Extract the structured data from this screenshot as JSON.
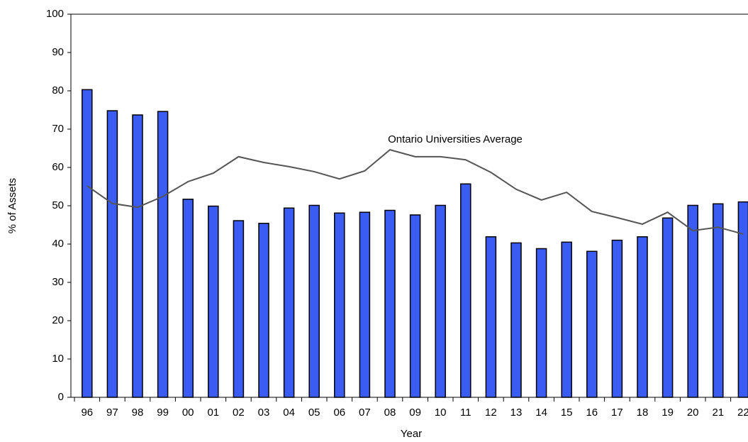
{
  "chart_data": {
    "type": "bar",
    "ylabel": "% of Assets",
    "xlabel": "Year",
    "categories": [
      "96",
      "97",
      "98",
      "99",
      "00",
      "01",
      "02",
      "03",
      "04",
      "05",
      "06",
      "07",
      "08",
      "09",
      "10",
      "11",
      "12",
      "13",
      "14",
      "15",
      "16",
      "17",
      "18",
      "19",
      "20",
      "21",
      "22"
    ],
    "series": [
      {
        "type": "bar",
        "color": "#3a5cf2",
        "values": [
          80.3,
          74.8,
          73.7,
          74.6,
          51.7,
          49.9,
          46.1,
          45.4,
          49.4,
          50.1,
          48.1,
          48.3,
          48.8,
          47.6,
          50.1,
          55.7,
          41.9,
          40.3,
          38.8,
          40.5,
          38.1,
          41.0,
          41.9,
          46.8,
          50.1,
          50.5,
          51.0
        ]
      },
      {
        "type": "line",
        "name": "Ontario Universities Average",
        "color": "#555555",
        "values": [
          55.2,
          50.6,
          49.6,
          52.4,
          56.3,
          58.5,
          62.8,
          61.3,
          60.2,
          58.9,
          57.0,
          59.1,
          64.6,
          62.8,
          62.8,
          62.0,
          58.7,
          54.3,
          51.5,
          53.5,
          48.5,
          46.9,
          45.2,
          48.3,
          43.5,
          44.4,
          42.6
        ]
      }
    ],
    "ylim": [
      0,
      100
    ],
    "yticks": [
      0,
      10,
      20,
      30,
      40,
      50,
      60,
      70,
      80,
      90,
      100
    ],
    "grid": false
  }
}
